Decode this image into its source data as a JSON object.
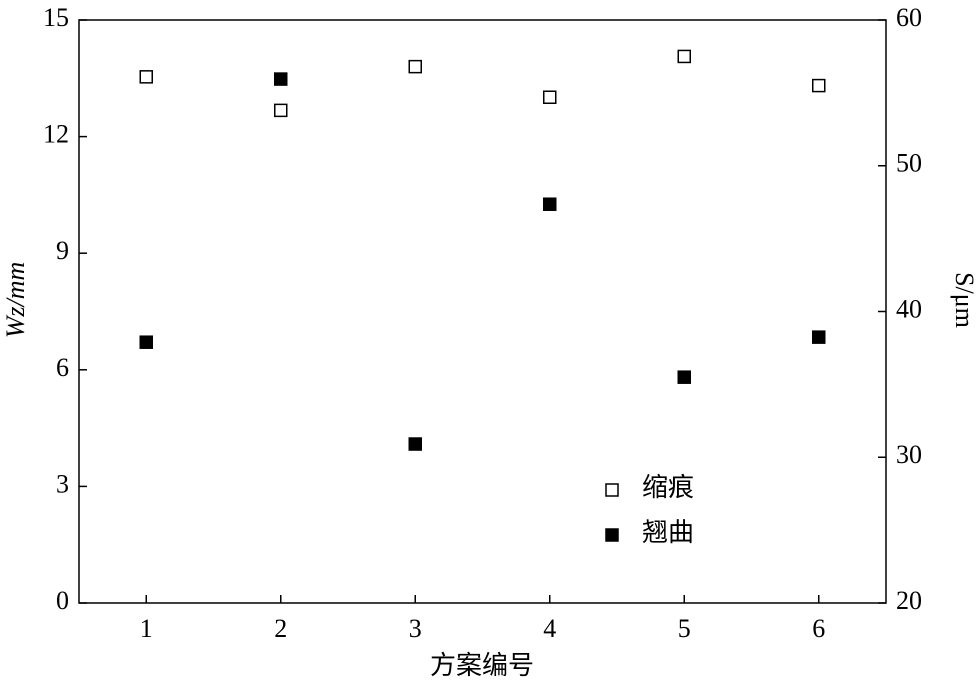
{
  "chart_data": {
    "type": "scatter",
    "xlabel": "方案编号",
    "ylabel": "Wz/mm",
    "y2label": "S/μm",
    "x": [
      1,
      2,
      3,
      4,
      5,
      6
    ],
    "xlim": [
      0.5,
      6.5
    ],
    "xticks": [
      1,
      2,
      3,
      4,
      5,
      6
    ],
    "ylim": [
      0,
      15
    ],
    "yticks": [
      0,
      3,
      6,
      9,
      12,
      15
    ],
    "y2lim": [
      20,
      60
    ],
    "y2ticks": [
      20,
      30,
      40,
      50,
      60
    ],
    "legend": "lower right",
    "series": [
      {
        "name": "缩痕",
        "color": "#000000",
        "marker": "open-square",
        "axis": "y2",
        "values": [
          56.1,
          53.8,
          56.8,
          54.7,
          57.5,
          55.5
        ]
      },
      {
        "name": "翘曲",
        "color": "#000000",
        "marker": "filled-square",
        "values": [
          6.71,
          13.48,
          4.09,
          10.26,
          5.81,
          6.84
        ]
      }
    ]
  }
}
